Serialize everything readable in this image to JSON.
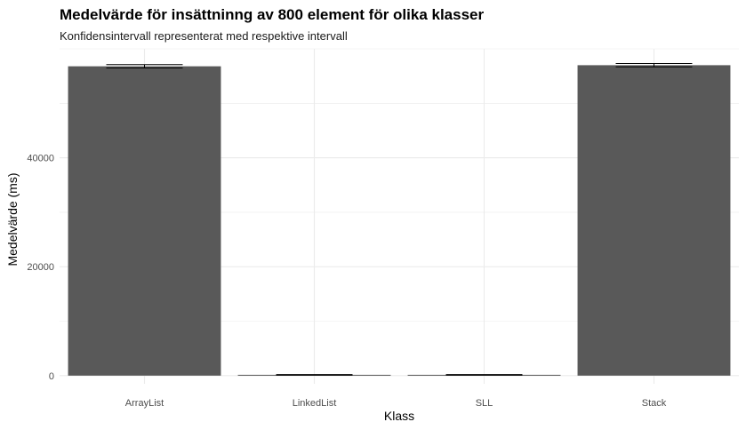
{
  "chart_data": {
    "type": "bar",
    "title": "Medelvärde för insättninng av 800 element för olika klasser",
    "subtitle": "Konfidensintervall representerat med respektive intervall",
    "xlabel": "Klass",
    "ylabel": "Medelvärde (ms)",
    "categories": [
      "ArrayList",
      "LinkedList",
      "SLL",
      "Stack"
    ],
    "values": [
      56800,
      150,
      150,
      57000
    ],
    "error_bars": [
      {
        "low": 56500,
        "high": 57100
      },
      {
        "low": 100,
        "high": 200
      },
      {
        "low": 100,
        "high": 200
      },
      {
        "low": 56700,
        "high": 57300
      }
    ],
    "ylim": [
      -1500,
      60000
    ],
    "yticks": [
      0,
      20000,
      40000
    ],
    "yticks_labels": [
      "0",
      "20000",
      "40000"
    ],
    "grid": true,
    "bar_color": "#595959",
    "grid_color": "#ebebeb"
  }
}
